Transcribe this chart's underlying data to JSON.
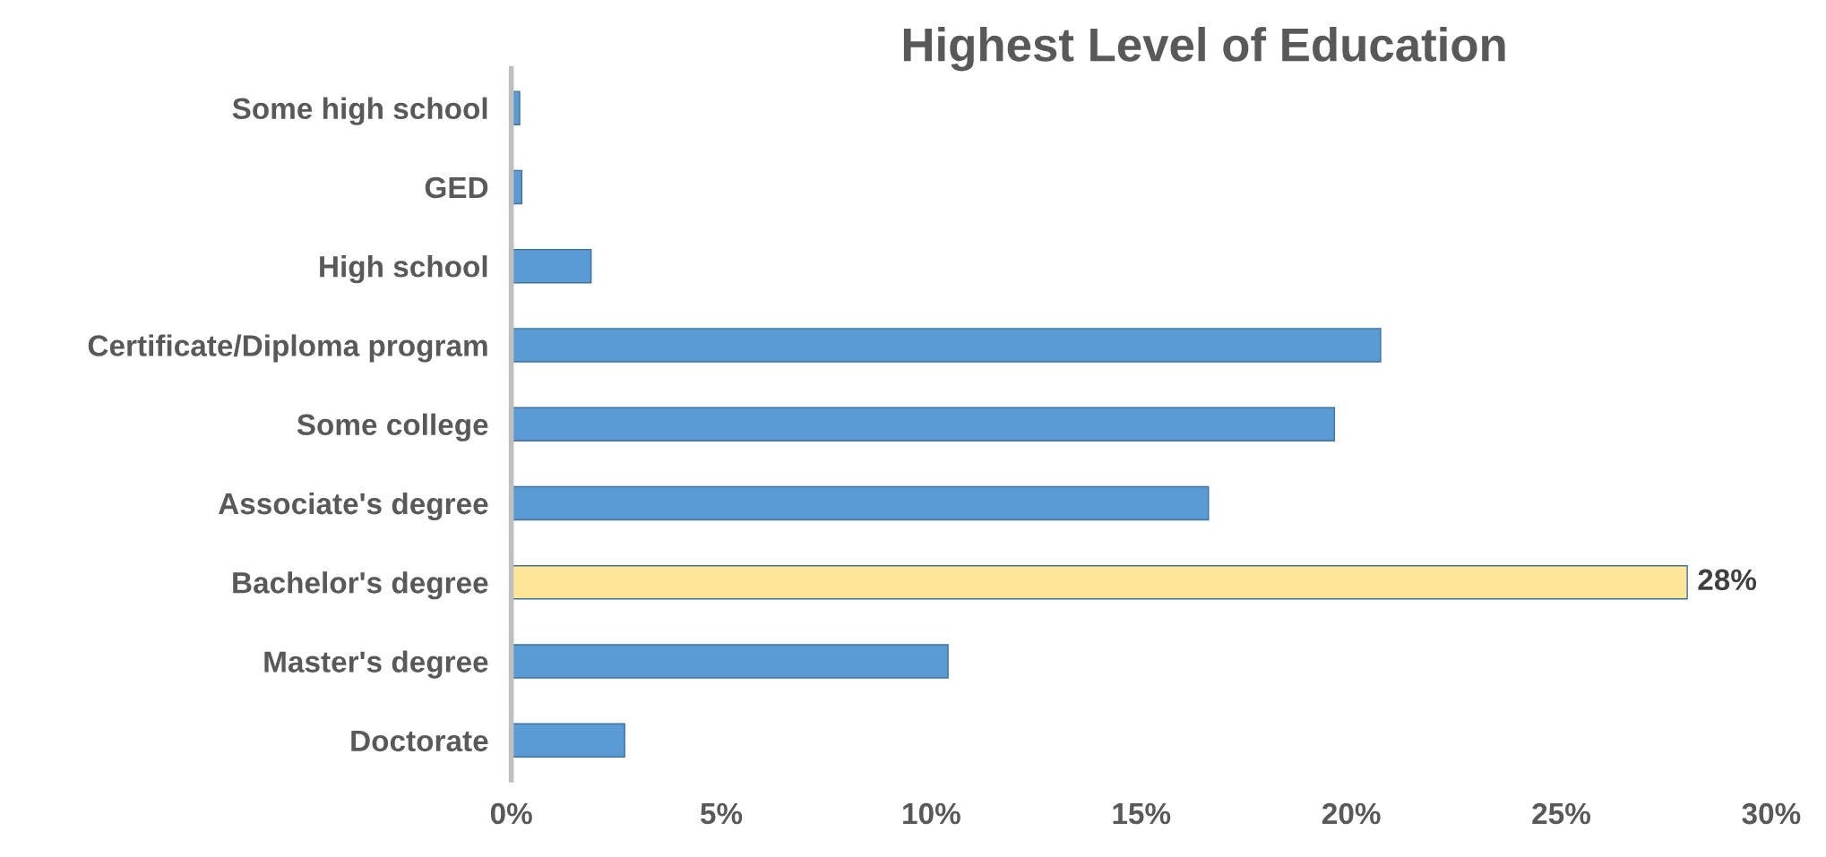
{
  "chart_data": {
    "type": "bar",
    "orientation": "horizontal",
    "title": "Highest Level of Education",
    "categories": [
      "Some high school",
      "GED",
      "High school",
      "Certificate/Diploma program",
      "Some college",
      "Associate's degree",
      "Bachelor's degree",
      "Master's degree",
      "Doctorate"
    ],
    "values": [
      0.2,
      0.25,
      1.9,
      20.7,
      19.6,
      16.6,
      28,
      10.4,
      2.7
    ],
    "colors": [
      "#5b9bd5",
      "#5b9bd5",
      "#5b9bd5",
      "#5b9bd5",
      "#5b9bd5",
      "#5b9bd5",
      "#ffe699",
      "#5b9bd5",
      "#5b9bd5"
    ],
    "value_labels": [
      null,
      null,
      null,
      null,
      null,
      null,
      "28%",
      null,
      null
    ],
    "xlim": [
      0,
      30
    ],
    "xticks": [
      {
        "value": 0,
        "label": "0%"
      },
      {
        "value": 5,
        "label": "5%"
      },
      {
        "value": 10,
        "label": "10%"
      },
      {
        "value": 15,
        "label": "15%"
      },
      {
        "value": 20,
        "label": "20%"
      },
      {
        "value": 25,
        "label": "25%"
      },
      {
        "value": 30,
        "label": "30%"
      }
    ],
    "grid": false
  }
}
